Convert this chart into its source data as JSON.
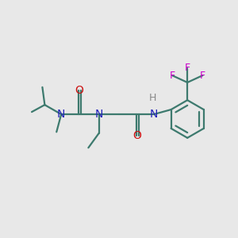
{
  "background_color": "#e8e8e8",
  "bond_color": "#3d7a6e",
  "N_color": "#2222bb",
  "O_color": "#cc1111",
  "F_color": "#cc00cc",
  "H_color": "#888888",
  "bond_width": 1.6,
  "fig_size": [
    3.0,
    3.0
  ],
  "dpi": 100,
  "xlim": [
    0,
    1
  ],
  "ylim": [
    0,
    1
  ]
}
